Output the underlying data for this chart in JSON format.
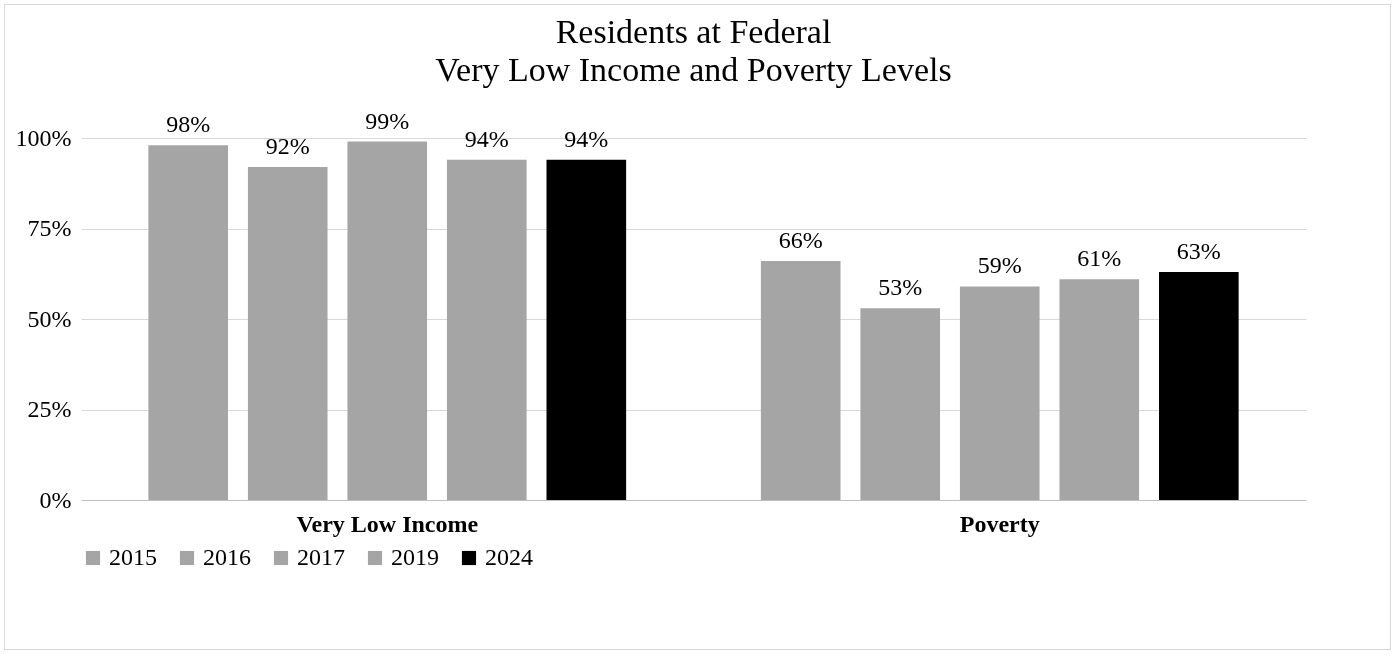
{
  "chart_data": {
    "type": "bar",
    "title": "Residents at Federal\nVery Low Income and Poverty  Levels",
    "categories": [
      "Very Low Income",
      "Poverty"
    ],
    "series": [
      {
        "name": "2015",
        "color": "#a5a5a5",
        "values": [
          98,
          66
        ],
        "value_labels": [
          "98%",
          "66%"
        ]
      },
      {
        "name": "2016",
        "color": "#a5a5a5",
        "values": [
          92,
          53
        ],
        "value_labels": [
          "92%",
          "53%"
        ]
      },
      {
        "name": "2017",
        "color": "#a5a5a5",
        "values": [
          99,
          59
        ],
        "value_labels": [
          "99%",
          "59%"
        ]
      },
      {
        "name": "2019",
        "color": "#a5a5a5",
        "values": [
          94,
          61
        ],
        "value_labels": [
          "94%",
          "61%"
        ]
      },
      {
        "name": "2024",
        "color": "#000000",
        "values": [
          94,
          63
        ],
        "value_labels": [
          "94%",
          "63%"
        ]
      }
    ],
    "ylim": [
      0,
      100
    ],
    "yticks": [
      {
        "value": 0,
        "label": "0%"
      },
      {
        "value": 25,
        "label": "25%"
      },
      {
        "value": 50,
        "label": "50%"
      },
      {
        "value": 75,
        "label": "75%"
      },
      {
        "value": 100,
        "label": "100%"
      }
    ],
    "grid": "y",
    "legend": "bottom"
  }
}
